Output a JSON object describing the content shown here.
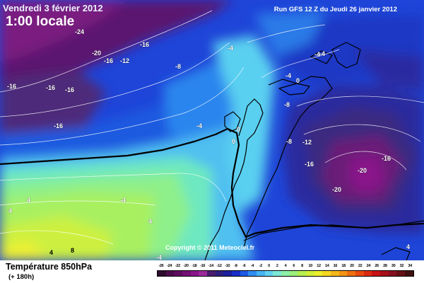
{
  "header": {
    "date": "Vendredi 3 février 2012",
    "time": "1:00 locale",
    "run": "Run GFS 12 Z du Jeudi 26 janvier 2012"
  },
  "copyright": "Copyright © 2011 Meteociel.fr",
  "footer": {
    "variable": "Température 850hPa",
    "lead_time": "(+ 180h)"
  },
  "legend": {
    "ticks": [
      "-26",
      "-24",
      "-22",
      "-20",
      "-18",
      "-16",
      "-14",
      "-12",
      "-10",
      "-8",
      "-6",
      "-4",
      "-2",
      "0",
      "2",
      "4",
      "6",
      "8",
      "10",
      "12",
      "14",
      "16",
      "18",
      "20",
      "22",
      "24",
      "26",
      "28",
      "30",
      "32",
      "34"
    ],
    "colors": [
      "#2e0a2e",
      "#4a0a4a",
      "#5e0c5e",
      "#740f74",
      "#8a148a",
      "#9b2a9b",
      "#4a1d6e",
      "#2e1f7e",
      "#1d1f9e",
      "#1a2ec8",
      "#1e5ae6",
      "#2f8cf0",
      "#47b4f3",
      "#62d2f0",
      "#7de8d6",
      "#8df0a8",
      "#9bf07a",
      "#b4f050",
      "#d2f036",
      "#ecf02a",
      "#f5d820",
      "#f5b81a",
      "#f59514",
      "#ef7010",
      "#e84a10",
      "#dc2a12",
      "#c81216",
      "#a8101a",
      "#86101e",
      "#661016",
      "#401010"
    ]
  },
  "isotherms": [
    {
      "label": "-24",
      "kind": "light"
    },
    {
      "label": "-20",
      "kind": "light"
    },
    {
      "label": "-16",
      "kind": "light"
    },
    {
      "label": "-16",
      "kind": "light"
    },
    {
      "label": "-12",
      "kind": "light"
    },
    {
      "label": "-16",
      "kind": "light"
    },
    {
      "label": "-16",
      "kind": "light"
    },
    {
      "label": "-16",
      "kind": "light"
    },
    {
      "label": "-16",
      "kind": "light"
    },
    {
      "label": "-8",
      "kind": "light"
    },
    {
      "label": "-4",
      "kind": "light"
    },
    {
      "label": "-4",
      "kind": "light"
    },
    {
      "label": "-4",
      "kind": "light"
    },
    {
      "label": "-4",
      "kind": "light"
    },
    {
      "label": "-8",
      "kind": "light"
    },
    {
      "label": "-8",
      "kind": "light"
    },
    {
      "label": "-12",
      "kind": "light"
    },
    {
      "label": "-16",
      "kind": "light"
    },
    {
      "label": "-16",
      "kind": "light"
    },
    {
      "label": "-20",
      "kind": "light"
    },
    {
      "label": "-20",
      "kind": "light"
    },
    {
      "label": "0",
      "kind": "light"
    },
    {
      "label": "0",
      "kind": "light"
    },
    {
      "label": "0",
      "kind": "light"
    },
    {
      "label": "4",
      "kind": "light"
    },
    {
      "label": "4",
      "kind": "light"
    },
    {
      "label": "-4",
      "kind": "light"
    },
    {
      "label": "4",
      "kind": "light"
    },
    {
      "label": "4",
      "kind": "dark"
    },
    {
      "label": "8",
      "kind": "dark"
    },
    {
      "label": "-4",
      "kind": "light"
    },
    {
      "label": "4",
      "kind": "light"
    },
    {
      "label": "-4",
      "kind": "light"
    }
  ]
}
